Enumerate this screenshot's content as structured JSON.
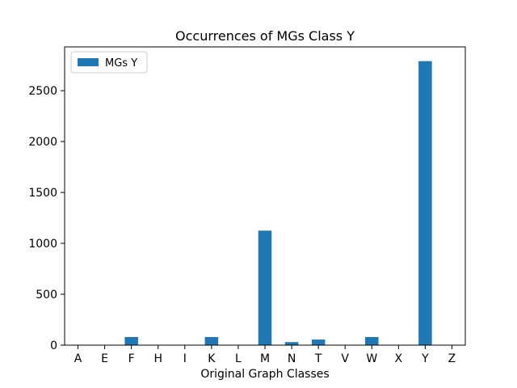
{
  "chart_data": {
    "type": "bar",
    "title": "Occurrences of MGs Class Y",
    "xlabel": "Original Graph Classes",
    "ylabel": "",
    "categories": [
      "A",
      "E",
      "F",
      "H",
      "I",
      "K",
      "L",
      "M",
      "N",
      "T",
      "V",
      "W",
      "X",
      "Y",
      "Z"
    ],
    "series": [
      {
        "name": "MGs Y",
        "color": "#1f77b4",
        "values": [
          0,
          0,
          80,
          0,
          0,
          80,
          0,
          1125,
          30,
          55,
          0,
          80,
          0,
          2790,
          0
        ]
      }
    ],
    "ylim": [
      0,
      2930
    ],
    "yticks": [
      0,
      500,
      1000,
      1500,
      2000,
      2500
    ],
    "legend": {
      "position": "top-left"
    },
    "grid": false
  }
}
